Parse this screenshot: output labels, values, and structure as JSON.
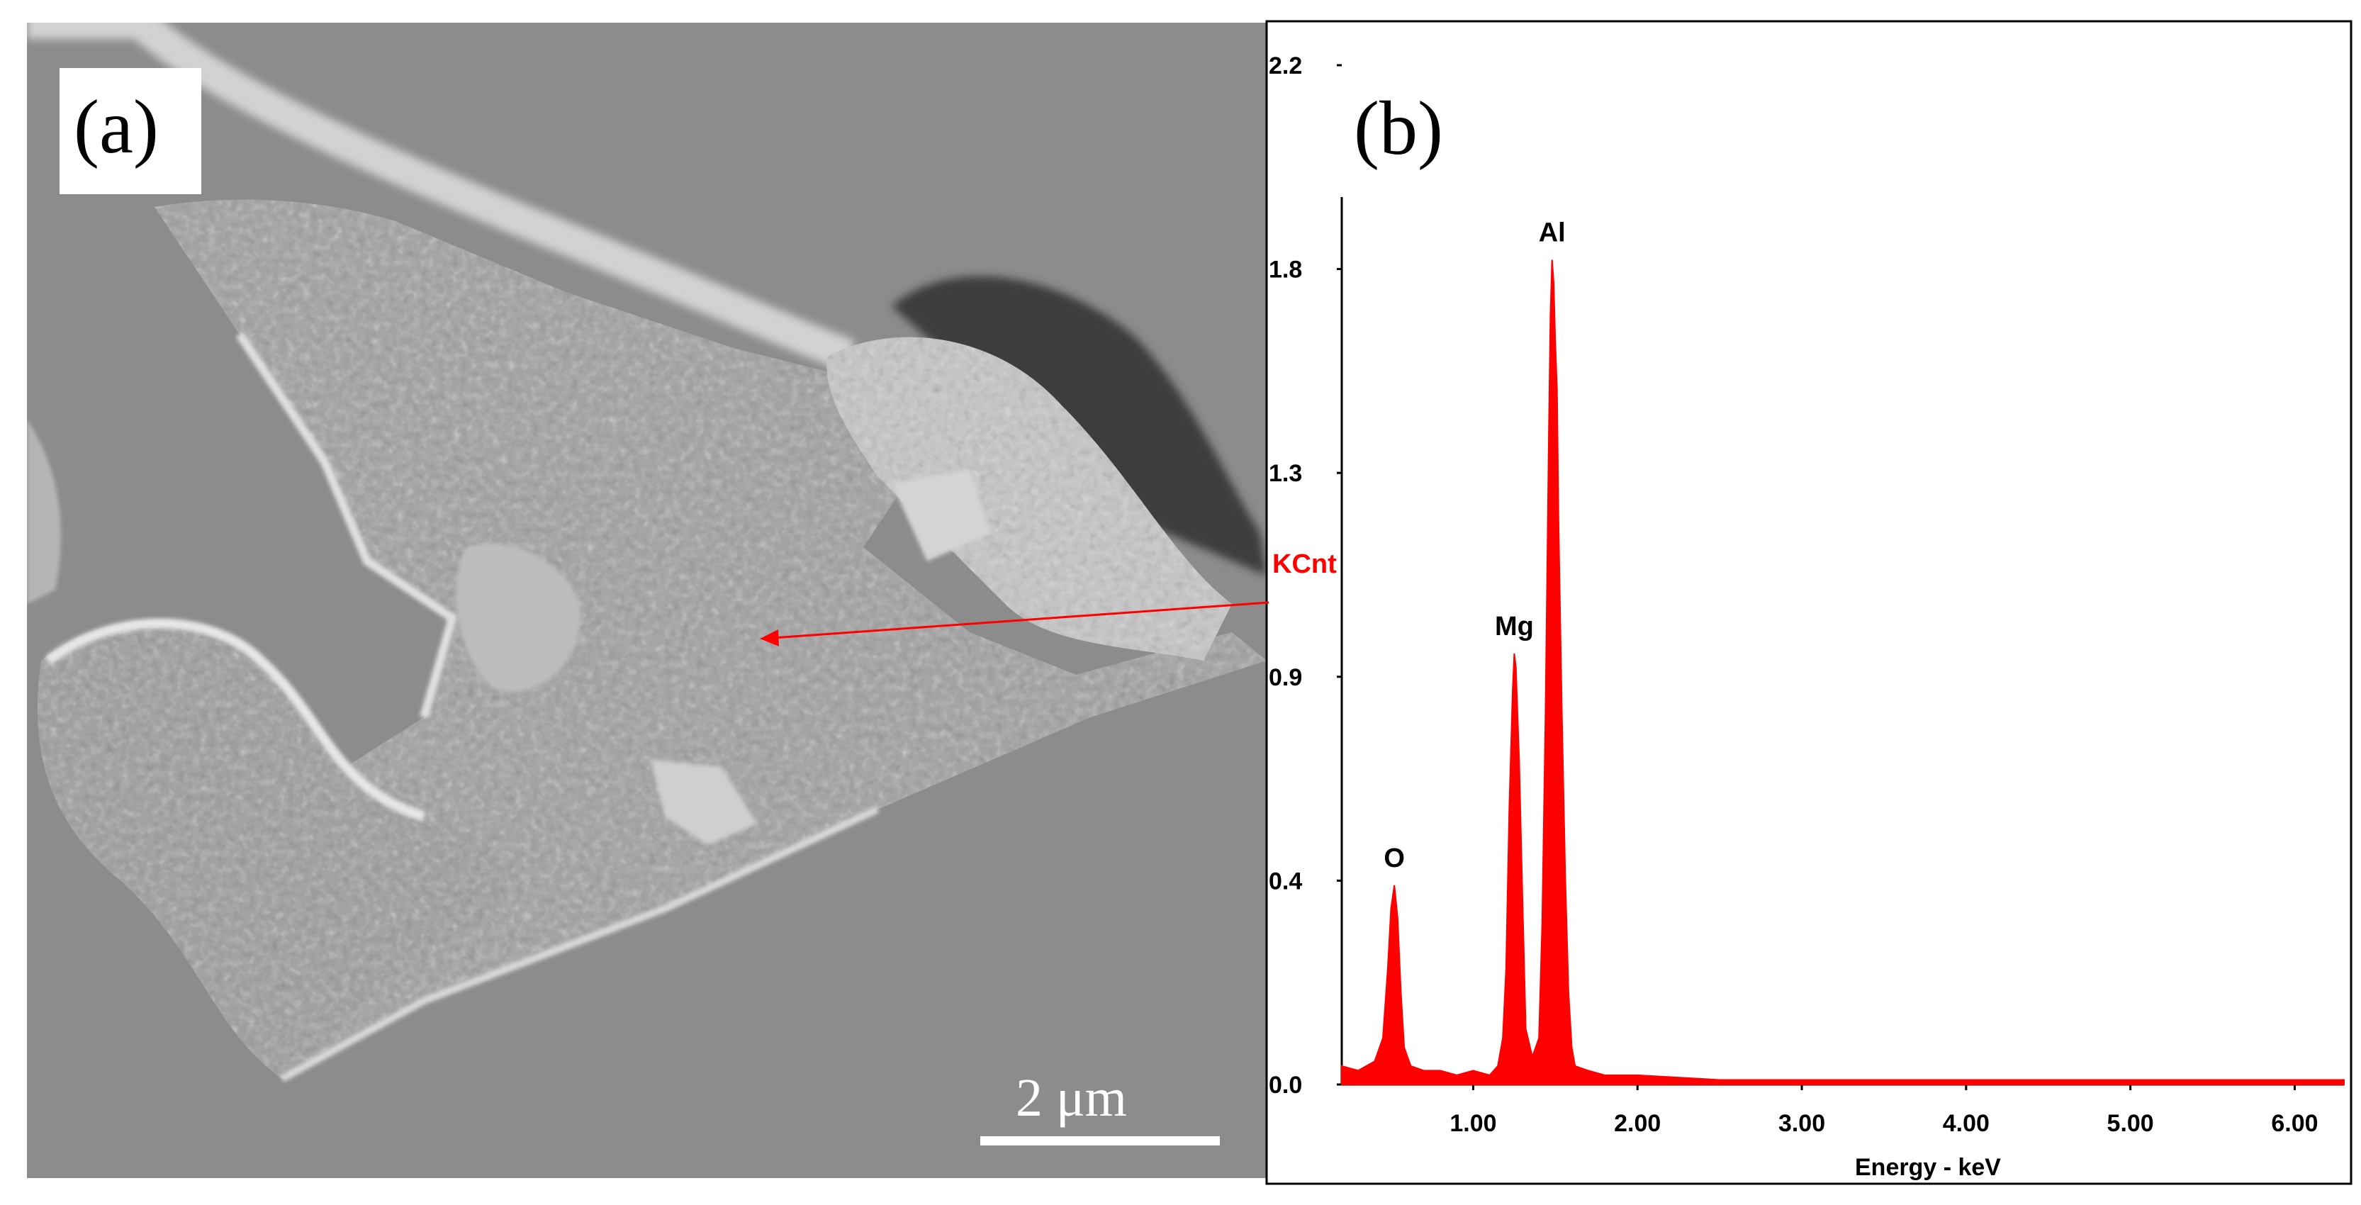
{
  "panel_a": {
    "letter": "(a)",
    "scale_bar_label": "2 μm"
  },
  "panel_b": {
    "letter": "(b)"
  },
  "chart_data": {
    "type": "line",
    "title": "",
    "xlabel": "Energy - keV",
    "ylabel": "KCnt",
    "xlim": [
      0.2,
      6.3
    ],
    "ylim": [
      0.0,
      2.2
    ],
    "x_ticks": [
      {
        "value": 1.0,
        "label": "1.00"
      },
      {
        "value": 2.0,
        "label": "2.00"
      },
      {
        "value": 3.0,
        "label": "3.00"
      },
      {
        "value": 4.0,
        "label": "4.00"
      },
      {
        "value": 5.0,
        "label": "5.00"
      },
      {
        "value": 6.0,
        "label": "6.00"
      }
    ],
    "y_ticks": [
      {
        "value": 0.0,
        "label": "0.0"
      },
      {
        "value": 0.44,
        "label": "0.4"
      },
      {
        "value": 0.88,
        "label": "0.9"
      },
      {
        "value": 1.32,
        "label": "1.3"
      },
      {
        "value": 1.76,
        "label": "1.8"
      },
      {
        "value": 2.2,
        "label": "2.2"
      }
    ],
    "series": [
      {
        "color": "#ff0000",
        "x": [
          0.2,
          0.3,
          0.4,
          0.45,
          0.48,
          0.5,
          0.52,
          0.54,
          0.56,
          0.58,
          0.62,
          0.7,
          0.8,
          0.9,
          1.0,
          1.1,
          1.15,
          1.18,
          1.2,
          1.22,
          1.24,
          1.25,
          1.26,
          1.28,
          1.3,
          1.32,
          1.36,
          1.4,
          1.42,
          1.44,
          1.46,
          1.47,
          1.48,
          1.49,
          1.5,
          1.51,
          1.52,
          1.54,
          1.56,
          1.58,
          1.6,
          1.62,
          1.7,
          1.8,
          2.0,
          2.5,
          3.0,
          4.0,
          5.0,
          6.3
        ],
        "y": [
          0.04,
          0.03,
          0.05,
          0.1,
          0.25,
          0.38,
          0.43,
          0.36,
          0.2,
          0.08,
          0.04,
          0.03,
          0.03,
          0.02,
          0.03,
          0.02,
          0.04,
          0.1,
          0.25,
          0.6,
          0.85,
          0.93,
          0.9,
          0.7,
          0.4,
          0.12,
          0.06,
          0.1,
          0.35,
          0.8,
          1.4,
          1.66,
          1.78,
          1.73,
          1.6,
          1.5,
          1.2,
          0.8,
          0.45,
          0.2,
          0.08,
          0.04,
          0.03,
          0.02,
          0.02,
          0.01,
          0.01,
          0.01,
          0.01,
          0.01
        ]
      }
    ],
    "annotations": [
      {
        "label": "O",
        "x": 0.52,
        "y": 0.43
      },
      {
        "label": "Mg",
        "x": 1.25,
        "y": 0.93
      },
      {
        "label": "Al",
        "x": 1.48,
        "y": 1.78
      }
    ]
  },
  "colors": {
    "spectrum": "#ff0000",
    "pointer_arrow": "#ff0000",
    "ylabel": "#ff0000"
  }
}
